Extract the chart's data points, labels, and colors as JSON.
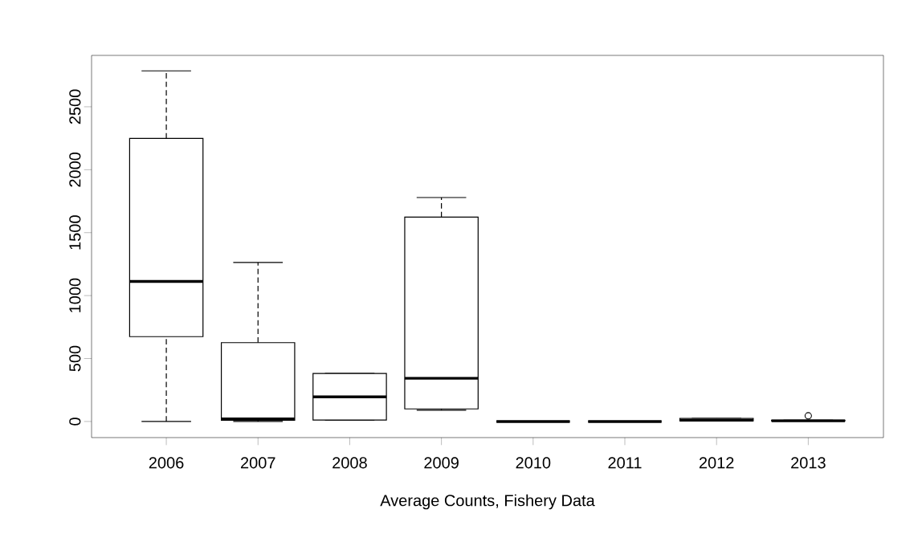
{
  "chart_data": {
    "type": "box",
    "xlabel": "Average Counts, Fishery Data",
    "categories": [
      "2006",
      "2007",
      "2008",
      "2009",
      "2010",
      "2011",
      "2012",
      "2013"
    ],
    "boxes": [
      {
        "low": 0,
        "q1": 674,
        "median": 1112,
        "q3": 2249,
        "high": 2785
      },
      {
        "low": 0,
        "q1": 10,
        "median": 20,
        "q3": 626,
        "high": 1263
      },
      {
        "low": 12,
        "q1": 12,
        "median": 195,
        "q3": 382,
        "high": 382
      },
      {
        "low": 90,
        "q1": 100,
        "median": 343,
        "q3": 1624,
        "high": 1779
      },
      {
        "low": 0,
        "q1": 0,
        "median": 0,
        "q3": 0,
        "high": 0
      },
      {
        "low": 0,
        "q1": 0,
        "median": 0,
        "q3": 0,
        "high": 0
      },
      {
        "low": 5,
        "q1": 5,
        "median": 10,
        "q3": 25,
        "high": 25
      },
      {
        "low": 5,
        "q1": 5,
        "median": 5,
        "q3": 10,
        "high": 10,
        "outliers": [
          45
        ]
      }
    ],
    "color": "#000000",
    "ylim": [
      -128,
      2908
    ],
    "yticks": [
      0,
      500,
      1000,
      1500,
      2000,
      2500
    ],
    "grid": false
  }
}
